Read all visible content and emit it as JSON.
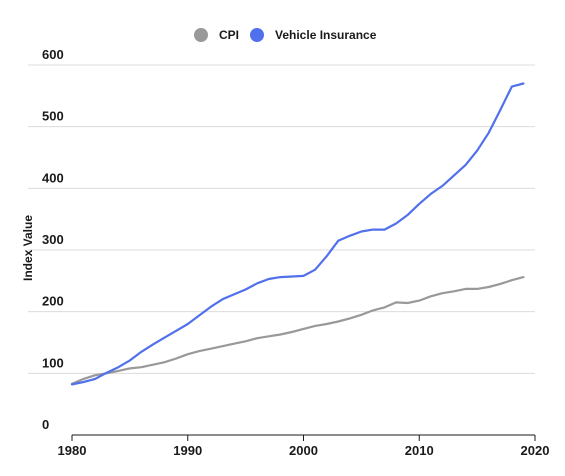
{
  "chart_data": {
    "type": "line",
    "title": "",
    "xlabel": "",
    "ylabel": "Index Value",
    "xlim": [
      1980,
      2020
    ],
    "ylim": [
      0,
      600
    ],
    "xticks": [
      "1980",
      "1990",
      "2000",
      "2010",
      "2020"
    ],
    "yticks": [
      "0",
      "100",
      "200",
      "300",
      "400",
      "500",
      "600"
    ],
    "grid": true,
    "legend_position": "top-center",
    "series": [
      {
        "name": "CPI",
        "color": "#999999",
        "x": [
          1980,
          1981,
          1982,
          1983,
          1984,
          1985,
          1986,
          1987,
          1988,
          1989,
          1990,
          1991,
          1992,
          1993,
          1994,
          1995,
          1996,
          1997,
          1998,
          1999,
          2000,
          2001,
          2002,
          2003,
          2004,
          2005,
          2006,
          2007,
          2008,
          2009,
          2010,
          2011,
          2012,
          2013,
          2014,
          2015,
          2016,
          2017,
          2018,
          2019
        ],
        "values": [
          83,
          91,
          97,
          100,
          104,
          108,
          110,
          114,
          118,
          124,
          131,
          136,
          140,
          144,
          148,
          152,
          157,
          160,
          163,
          167,
          172,
          177,
          180,
          184,
          189,
          195,
          202,
          207,
          215,
          214,
          218,
          225,
          230,
          233,
          237,
          237,
          240,
          245,
          251,
          256
        ]
      },
      {
        "name": "Vehicle Insurance",
        "color": "#5170ec",
        "x": [
          1980,
          1981,
          1982,
          1983,
          1984,
          1985,
          1986,
          1987,
          1988,
          1989,
          1990,
          1991,
          1992,
          1993,
          1994,
          1995,
          1996,
          1997,
          1998,
          1999,
          2000,
          2001,
          2002,
          2003,
          2004,
          2005,
          2006,
          2007,
          2008,
          2009,
          2010,
          2011,
          2012,
          2013,
          2014,
          2015,
          2016,
          2017,
          2018,
          2019
        ],
        "values": [
          82,
          86,
          91,
          101,
          110,
          121,
          135,
          147,
          158,
          169,
          180,
          194,
          208,
          220,
          228,
          236,
          246,
          253,
          256,
          257,
          258,
          268,
          290,
          315,
          323,
          330,
          333,
          333,
          343,
          357,
          375,
          391,
          404,
          421,
          438,
          461,
          490,
          527,
          565,
          570
        ]
      }
    ]
  }
}
